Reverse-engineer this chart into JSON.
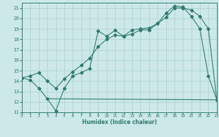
{
  "xlabel": "Humidex (Indice chaleur)",
  "bg_color": "#cde8e8",
  "line_color": "#2d7a6e",
  "grid_color": "#aacfcf",
  "xlim": [
    0,
    23
  ],
  "ylim": [
    11,
    21.5
  ],
  "xtick_vals": [
    0,
    1,
    2,
    3,
    4,
    5,
    6,
    7,
    8,
    9,
    10,
    11,
    12,
    13,
    14,
    15,
    16,
    17,
    18,
    19,
    20,
    21,
    22,
    23
  ],
  "ytick_vals": [
    11,
    12,
    13,
    14,
    15,
    16,
    17,
    18,
    19,
    20,
    21
  ],
  "line1": {
    "x": [
      0,
      1,
      2,
      3,
      4,
      5,
      6,
      7,
      8,
      9,
      10,
      11,
      12,
      13,
      14,
      15,
      16,
      17,
      18,
      19,
      20,
      21,
      22,
      23
    ],
    "y": [
      14.3,
      14.1,
      13.3,
      12.3,
      11.15,
      13.3,
      14.5,
      14.8,
      15.2,
      18.8,
      18.3,
      18.85,
      18.3,
      18.5,
      18.9,
      18.9,
      19.5,
      20.5,
      21.2,
      21.1,
      20.2,
      19.0,
      14.5,
      12.2
    ],
    "markers": true
  },
  "line2": {
    "x": [
      3,
      23
    ],
    "y": [
      12.3,
      12.2
    ],
    "markers": false
  },
  "line3": {
    "x": [
      0,
      1,
      2,
      3,
      4,
      5,
      6,
      7,
      8,
      9,
      10,
      11,
      12,
      13,
      14,
      15,
      16,
      17,
      18,
      19,
      20,
      21,
      22,
      23
    ],
    "y": [
      14.3,
      14.5,
      14.8,
      14.0,
      13.3,
      14.2,
      14.9,
      15.5,
      16.2,
      17.3,
      18.0,
      18.4,
      18.3,
      18.9,
      19.0,
      19.1,
      19.5,
      20.1,
      21.0,
      21.0,
      20.8,
      20.2,
      19.0,
      12.2
    ],
    "markers": true
  }
}
